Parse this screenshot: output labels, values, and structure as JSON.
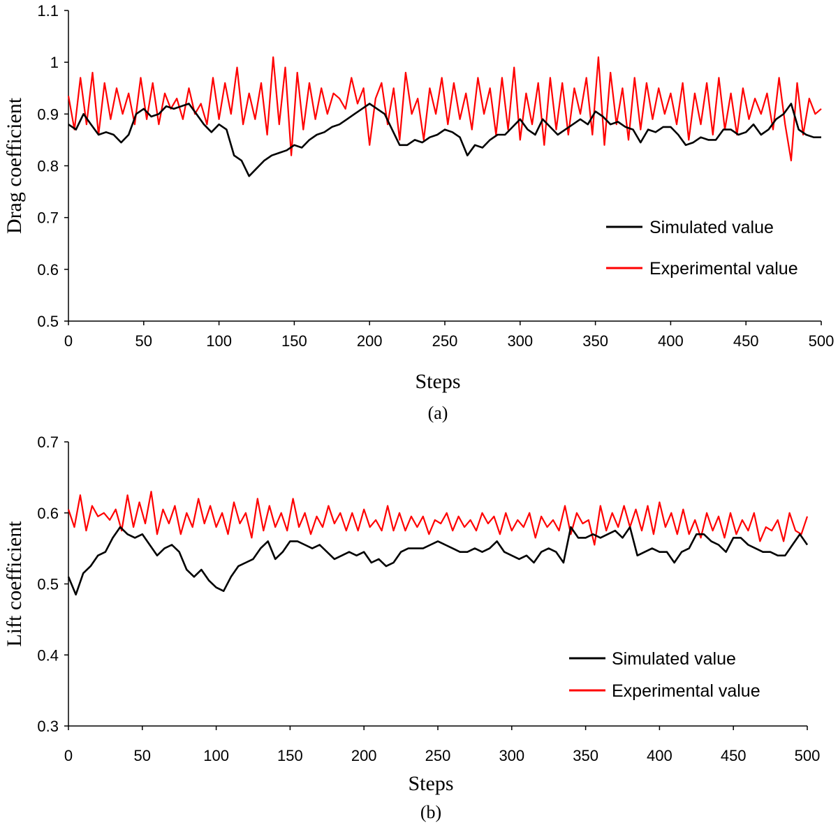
{
  "chart_data": [
    {
      "type": "line",
      "caption": "(a)",
      "xlabel": "Steps",
      "ylabel": "Drag coefficient",
      "xlim": [
        0,
        500
      ],
      "ylim": [
        0.5,
        1.1
      ],
      "xticks": [
        "0",
        "50",
        "100",
        "150",
        "200",
        "250",
        "300",
        "350",
        "400",
        "450",
        "500"
      ],
      "yticks": [
        "0.5",
        "0.6",
        "0.7",
        "0.8",
        "0.9",
        "1",
        "1.1"
      ],
      "grid": false,
      "legend_position": "right",
      "series": [
        {
          "name": "Simulated value",
          "color": "#000000",
          "x": [
            0,
            5,
            10,
            15,
            20,
            25,
            30,
            35,
            40,
            45,
            50,
            55,
            60,
            65,
            70,
            75,
            80,
            85,
            90,
            95,
            100,
            105,
            110,
            115,
            120,
            125,
            130,
            135,
            140,
            145,
            150,
            155,
            160,
            165,
            170,
            175,
            180,
            185,
            190,
            195,
            200,
            205,
            210,
            215,
            220,
            225,
            230,
            235,
            240,
            245,
            250,
            255,
            260,
            265,
            270,
            275,
            280,
            285,
            290,
            295,
            300,
            305,
            310,
            315,
            320,
            325,
            330,
            335,
            340,
            345,
            350,
            355,
            360,
            365,
            370,
            375,
            380,
            385,
            390,
            395,
            400,
            405,
            410,
            415,
            420,
            425,
            430,
            435,
            440,
            445,
            450,
            455,
            460,
            465,
            470,
            475,
            480,
            485,
            490,
            495,
            500
          ],
          "y": [
            0.88,
            0.87,
            0.9,
            0.88,
            0.86,
            0.865,
            0.86,
            0.845,
            0.86,
            0.9,
            0.91,
            0.895,
            0.9,
            0.915,
            0.91,
            0.915,
            0.92,
            0.9,
            0.88,
            0.865,
            0.88,
            0.87,
            0.82,
            0.81,
            0.78,
            0.795,
            0.81,
            0.82,
            0.825,
            0.83,
            0.84,
            0.835,
            0.85,
            0.86,
            0.865,
            0.875,
            0.88,
            0.89,
            0.9,
            0.91,
            0.92,
            0.91,
            0.9,
            0.87,
            0.84,
            0.84,
            0.85,
            0.845,
            0.855,
            0.86,
            0.87,
            0.865,
            0.855,
            0.82,
            0.84,
            0.835,
            0.85,
            0.86,
            0.86,
            0.875,
            0.89,
            0.87,
            0.86,
            0.89,
            0.875,
            0.86,
            0.87,
            0.88,
            0.89,
            0.88,
            0.905,
            0.895,
            0.88,
            0.885,
            0.875,
            0.87,
            0.845,
            0.87,
            0.865,
            0.875,
            0.875,
            0.86,
            0.84,
            0.845,
            0.855,
            0.85,
            0.85,
            0.87,
            0.87,
            0.86,
            0.865,
            0.88,
            0.86,
            0.87,
            0.89,
            0.9,
            0.92,
            0.87,
            0.86,
            0.855,
            0.855
          ]
        },
        {
          "name": "Experimental value",
          "color": "#ff0000",
          "x": [
            0,
            4,
            8,
            12,
            16,
            20,
            24,
            28,
            32,
            36,
            40,
            44,
            48,
            52,
            56,
            60,
            64,
            68,
            72,
            76,
            80,
            84,
            88,
            92,
            96,
            100,
            104,
            108,
            112,
            116,
            120,
            124,
            128,
            132,
            136,
            140,
            144,
            148,
            152,
            156,
            160,
            164,
            168,
            172,
            176,
            180,
            184,
            188,
            192,
            196,
            200,
            204,
            208,
            212,
            216,
            220,
            224,
            228,
            232,
            236,
            240,
            244,
            248,
            252,
            256,
            260,
            264,
            268,
            272,
            276,
            280,
            284,
            288,
            292,
            296,
            300,
            304,
            308,
            312,
            316,
            320,
            324,
            328,
            332,
            336,
            340,
            344,
            348,
            352,
            356,
            360,
            364,
            368,
            372,
            376,
            380,
            384,
            388,
            392,
            396,
            400,
            404,
            408,
            412,
            416,
            420,
            424,
            428,
            432,
            436,
            440,
            444,
            448,
            452,
            456,
            460,
            464,
            468,
            472,
            476,
            480,
            484,
            488,
            492,
            496,
            500
          ],
          "y": [
            0.935,
            0.87,
            0.97,
            0.88,
            0.98,
            0.86,
            0.96,
            0.89,
            0.95,
            0.9,
            0.94,
            0.88,
            0.97,
            0.89,
            0.96,
            0.88,
            0.94,
            0.91,
            0.93,
            0.89,
            0.95,
            0.9,
            0.92,
            0.88,
            0.97,
            0.89,
            0.96,
            0.9,
            0.99,
            0.88,
            0.94,
            0.89,
            0.96,
            0.86,
            1.01,
            0.88,
            0.99,
            0.82,
            0.98,
            0.87,
            0.96,
            0.89,
            0.95,
            0.9,
            0.94,
            0.93,
            0.91,
            0.97,
            0.92,
            0.95,
            0.84,
            0.93,
            0.96,
            0.88,
            0.95,
            0.85,
            0.98,
            0.9,
            0.93,
            0.85,
            0.95,
            0.9,
            0.97,
            0.88,
            0.96,
            0.89,
            0.94,
            0.87,
            0.97,
            0.9,
            0.95,
            0.86,
            0.97,
            0.87,
            0.99,
            0.85,
            0.94,
            0.88,
            0.96,
            0.84,
            0.97,
            0.87,
            0.96,
            0.86,
            0.95,
            0.9,
            0.97,
            0.86,
            1.01,
            0.84,
            0.98,
            0.88,
            0.95,
            0.85,
            0.97,
            0.87,
            0.96,
            0.89,
            0.95,
            0.9,
            0.94,
            0.88,
            0.96,
            0.85,
            0.94,
            0.88,
            0.96,
            0.86,
            0.97,
            0.87,
            0.94,
            0.86,
            0.95,
            0.89,
            0.93,
            0.9,
            0.94,
            0.87,
            0.97,
            0.88,
            0.81,
            0.96,
            0.86,
            0.93,
            0.9,
            0.91
          ]
        }
      ]
    },
    {
      "type": "line",
      "caption": "(b)",
      "xlabel": "Steps",
      "ylabel": "Lift coefficient",
      "xlim": [
        0,
        500
      ],
      "ylim": [
        0.3,
        0.7
      ],
      "xticks": [
        "0",
        "50",
        "100",
        "150",
        "200",
        "250",
        "300",
        "350",
        "400",
        "450",
        "500"
      ],
      "yticks": [
        "0.3",
        "0.4",
        "0.5",
        "0.6",
        "0.7"
      ],
      "grid": false,
      "legend_position": "right",
      "series": [
        {
          "name": "Simulated value",
          "color": "#000000",
          "x": [
            0,
            5,
            10,
            15,
            20,
            25,
            30,
            35,
            40,
            45,
            50,
            55,
            60,
            65,
            70,
            75,
            80,
            85,
            90,
            95,
            100,
            105,
            110,
            115,
            120,
            125,
            130,
            135,
            140,
            145,
            150,
            155,
            160,
            165,
            170,
            175,
            180,
            185,
            190,
            195,
            200,
            205,
            210,
            215,
            220,
            225,
            230,
            235,
            240,
            245,
            250,
            255,
            260,
            265,
            270,
            275,
            280,
            285,
            290,
            295,
            300,
            305,
            310,
            315,
            320,
            325,
            330,
            335,
            340,
            345,
            350,
            355,
            360,
            365,
            370,
            375,
            380,
            385,
            390,
            395,
            400,
            405,
            410,
            415,
            420,
            425,
            430,
            435,
            440,
            445,
            450,
            455,
            460,
            465,
            470,
            475,
            480,
            485,
            490,
            495,
            500
          ],
          "y": [
            0.51,
            0.485,
            0.515,
            0.525,
            0.54,
            0.545,
            0.565,
            0.58,
            0.57,
            0.565,
            0.57,
            0.555,
            0.54,
            0.55,
            0.555,
            0.545,
            0.52,
            0.51,
            0.52,
            0.505,
            0.495,
            0.49,
            0.51,
            0.525,
            0.53,
            0.535,
            0.55,
            0.56,
            0.535,
            0.545,
            0.56,
            0.56,
            0.555,
            0.55,
            0.555,
            0.545,
            0.535,
            0.54,
            0.545,
            0.54,
            0.545,
            0.53,
            0.535,
            0.525,
            0.53,
            0.545,
            0.55,
            0.55,
            0.55,
            0.555,
            0.56,
            0.555,
            0.55,
            0.545,
            0.545,
            0.55,
            0.545,
            0.55,
            0.56,
            0.545,
            0.54,
            0.535,
            0.54,
            0.53,
            0.545,
            0.55,
            0.545,
            0.53,
            0.58,
            0.565,
            0.565,
            0.57,
            0.565,
            0.57,
            0.575,
            0.565,
            0.58,
            0.54,
            0.545,
            0.55,
            0.545,
            0.545,
            0.53,
            0.545,
            0.55,
            0.57,
            0.57,
            0.56,
            0.555,
            0.545,
            0.565,
            0.565,
            0.555,
            0.55,
            0.545,
            0.545,
            0.54,
            0.54,
            0.555,
            0.57,
            0.555
          ]
        },
        {
          "name": "Experimental value",
          "color": "#ff0000",
          "x": [
            0,
            4,
            8,
            12,
            16,
            20,
            24,
            28,
            32,
            36,
            40,
            44,
            48,
            52,
            56,
            60,
            64,
            68,
            72,
            76,
            80,
            84,
            88,
            92,
            96,
            100,
            104,
            108,
            112,
            116,
            120,
            124,
            128,
            132,
            136,
            140,
            144,
            148,
            152,
            156,
            160,
            164,
            168,
            172,
            176,
            180,
            184,
            188,
            192,
            196,
            200,
            204,
            208,
            212,
            216,
            220,
            224,
            228,
            232,
            236,
            240,
            244,
            248,
            252,
            256,
            260,
            264,
            268,
            272,
            276,
            280,
            284,
            288,
            292,
            296,
            300,
            304,
            308,
            312,
            316,
            320,
            324,
            328,
            332,
            336,
            340,
            344,
            348,
            352,
            356,
            360,
            364,
            368,
            372,
            376,
            380,
            384,
            388,
            392,
            396,
            400,
            404,
            408,
            412,
            416,
            420,
            424,
            428,
            432,
            436,
            440,
            444,
            448,
            452,
            456,
            460,
            464,
            468,
            472,
            476,
            480,
            484,
            488,
            492,
            496,
            500
          ],
          "y": [
            0.605,
            0.58,
            0.625,
            0.575,
            0.61,
            0.595,
            0.6,
            0.59,
            0.605,
            0.575,
            0.625,
            0.58,
            0.615,
            0.585,
            0.63,
            0.57,
            0.605,
            0.585,
            0.61,
            0.57,
            0.6,
            0.58,
            0.62,
            0.585,
            0.61,
            0.58,
            0.6,
            0.57,
            0.615,
            0.585,
            0.6,
            0.565,
            0.62,
            0.575,
            0.61,
            0.58,
            0.6,
            0.575,
            0.62,
            0.58,
            0.6,
            0.57,
            0.595,
            0.58,
            0.61,
            0.585,
            0.6,
            0.575,
            0.6,
            0.575,
            0.605,
            0.58,
            0.59,
            0.575,
            0.61,
            0.575,
            0.6,
            0.575,
            0.595,
            0.58,
            0.595,
            0.57,
            0.59,
            0.585,
            0.6,
            0.575,
            0.595,
            0.58,
            0.59,
            0.575,
            0.6,
            0.585,
            0.595,
            0.57,
            0.6,
            0.575,
            0.59,
            0.58,
            0.6,
            0.565,
            0.595,
            0.58,
            0.59,
            0.575,
            0.61,
            0.57,
            0.6,
            0.585,
            0.59,
            0.555,
            0.61,
            0.575,
            0.6,
            0.58,
            0.61,
            0.58,
            0.605,
            0.575,
            0.61,
            0.57,
            0.615,
            0.58,
            0.6,
            0.57,
            0.605,
            0.57,
            0.59,
            0.565,
            0.6,
            0.575,
            0.595,
            0.565,
            0.6,
            0.57,
            0.59,
            0.575,
            0.6,
            0.56,
            0.58,
            0.575,
            0.59,
            0.56,
            0.6,
            0.575,
            0.57,
            0.595
          ]
        }
      ]
    }
  ]
}
